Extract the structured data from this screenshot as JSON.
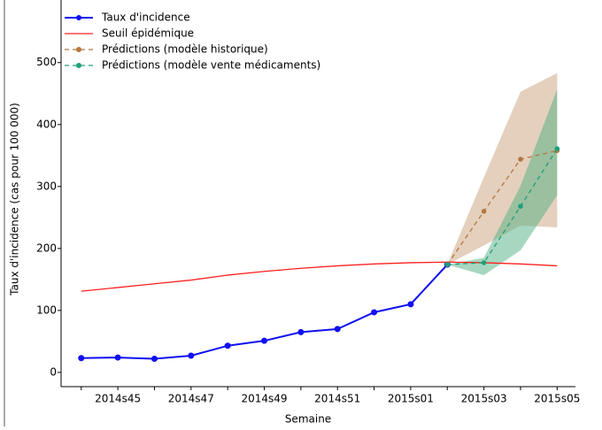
{
  "chart_data": {
    "type": "line",
    "xlabel": "Semaine",
    "ylabel": "Taux d'incidence (cas pour 100 000)",
    "categories": [
      null,
      "2014s45",
      null,
      "2014s47",
      null,
      "2014s49",
      null,
      "2014s51",
      null,
      "2015s01",
      null,
      "2015s03",
      null,
      "2015s05"
    ],
    "ylim": [
      -23,
      601
    ],
    "yticks": [
      0,
      100,
      200,
      300,
      400,
      500
    ],
    "legend": "upper left",
    "series": [
      {
        "name": "Taux d'incidence",
        "color": "#1010f0",
        "style": "solid",
        "markers": true,
        "values": [
          23,
          24,
          22,
          27,
          43,
          51,
          65,
          70,
          97,
          110,
          174,
          null,
          null,
          null
        ]
      },
      {
        "name": "Seuil épidémique",
        "color": "#ff2020",
        "style": "solid",
        "markers": false,
        "values": [
          131,
          137,
          143,
          149,
          157,
          163,
          168,
          172,
          175,
          177,
          178,
          177,
          175,
          172
        ]
      },
      {
        "name": "Prédictions (modèle historique)",
        "color": "#b5773d",
        "style": "dashed",
        "markers": true,
        "band_color": "#c9a27c",
        "values": [
          null,
          null,
          null,
          null,
          null,
          null,
          null,
          null,
          null,
          null,
          174,
          260,
          344,
          358
        ],
        "lower": [
          null,
          null,
          null,
          null,
          null,
          null,
          null,
          null,
          null,
          null,
          174,
          205,
          237,
          234
        ],
        "upper": [
          null,
          null,
          null,
          null,
          null,
          null,
          null,
          null,
          null,
          null,
          174,
          315,
          453,
          483
        ]
      },
      {
        "name": "Prédictions (modèle vente médicaments)",
        "color": "#1fa07a",
        "style": "dashed",
        "markers": true,
        "band_color": "#4fb083",
        "values": [
          null,
          null,
          null,
          null,
          null,
          null,
          null,
          null,
          null,
          null,
          174,
          177,
          268,
          361
        ],
        "lower": [
          null,
          null,
          null,
          null,
          null,
          null,
          null,
          null,
          null,
          null,
          174,
          157,
          197,
          286
        ],
        "upper": [
          null,
          null,
          null,
          null,
          null,
          null,
          null,
          null,
          null,
          null,
          174,
          185,
          301,
          457
        ]
      }
    ]
  }
}
